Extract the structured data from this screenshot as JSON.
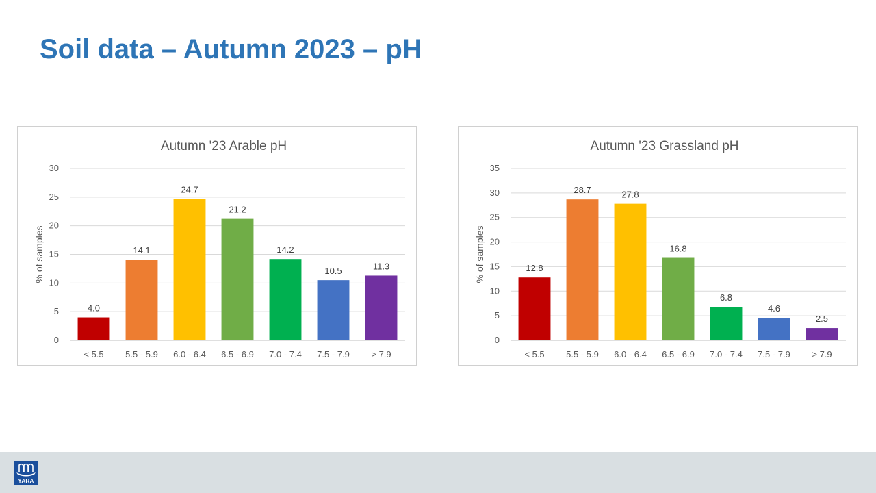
{
  "slide": {
    "title": "Soil data – Autumn 2023 – pH",
    "logo_text": "YARA"
  },
  "colors": {
    "title": "#2e75b6",
    "bar_colors": [
      "#c00000",
      "#ed7d31",
      "#ffc000",
      "#70ad47",
      "#00b050",
      "#4472c4",
      "#7030a0"
    ],
    "footer": "#d9dfe2",
    "logo": "#1b4f9c"
  },
  "chart_data": [
    {
      "type": "bar",
      "title": "Autumn '23 Arable pH",
      "xlabel": "",
      "ylabel": "% of samples",
      "categories": [
        "< 5.5",
        "5.5 - 5.9",
        "6.0 - 6.4",
        "6.5 - 6.9",
        "7.0 - 7.4",
        "7.5 - 7.9",
        "> 7.9"
      ],
      "values": [
        4.0,
        14.1,
        24.7,
        21.2,
        14.2,
        10.5,
        11.3
      ],
      "data_labels": [
        "4.0",
        "14.1",
        "24.7",
        "21.2",
        "14.2",
        "10.5",
        "11.3"
      ],
      "ylim": [
        0,
        30
      ],
      "yticks": [
        0,
        5,
        10,
        15,
        20,
        25,
        30
      ],
      "grid": true,
      "legend": "none"
    },
    {
      "type": "bar",
      "title": "Autumn '23 Grassland pH",
      "xlabel": "",
      "ylabel": "% of samples",
      "categories": [
        "< 5.5",
        "5.5 - 5.9",
        "6.0 - 6.4",
        "6.5 - 6.9",
        "7.0 - 7.4",
        "7.5 - 7.9",
        "> 7.9"
      ],
      "values": [
        12.8,
        28.7,
        27.8,
        16.8,
        6.8,
        4.6,
        2.5
      ],
      "data_labels": [
        "12.8",
        "28.7",
        "27.8",
        "16.8",
        "6.8",
        "4.6",
        "2.5"
      ],
      "ylim": [
        0,
        35
      ],
      "yticks": [
        0,
        5,
        10,
        15,
        20,
        25,
        30,
        35
      ],
      "grid": true,
      "legend": "none"
    }
  ]
}
